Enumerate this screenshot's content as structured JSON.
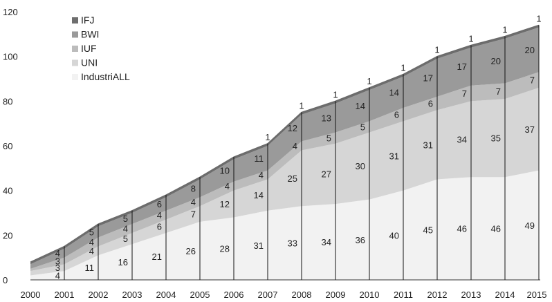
{
  "chart_data": {
    "type": "area",
    "stacked": true,
    "x": [
      "2000",
      "2001",
      "2002",
      "2003",
      "2004",
      "2005",
      "2006",
      "2007",
      "2008",
      "2009",
      "2010",
      "2011",
      "2012",
      "2013",
      "2014",
      "2015"
    ],
    "ylim": [
      0,
      120
    ],
    "yticks": [
      0,
      20,
      40,
      60,
      80,
      100,
      120
    ],
    "grid": false,
    "legend_position": "top-left",
    "series": [
      {
        "name": "IndustriALL",
        "color": "#f2f2f2",
        "values": [
          2,
          4,
          11,
          16,
          21,
          26,
          28,
          31,
          33,
          34,
          36,
          40,
          45,
          46,
          46,
          49
        ]
      },
      {
        "name": "UNI",
        "color": "#d6d6d6",
        "values": [
          2,
          3,
          4,
          5,
          6,
          7,
          12,
          14,
          25,
          27,
          30,
          31,
          31,
          34,
          35,
          37
        ]
      },
      {
        "name": "IUF",
        "color": "#bcbcbc",
        "values": [
          1,
          3,
          4,
          4,
          4,
          4,
          4,
          4,
          4,
          5,
          5,
          6,
          6,
          7,
          7,
          7
        ]
      },
      {
        "name": "BWI",
        "color": "#9a9a9a",
        "values": [
          2,
          4,
          5,
          5,
          6,
          8,
          10,
          11,
          12,
          13,
          14,
          14,
          17,
          17,
          20,
          20
        ]
      },
      {
        "name": "IFJ",
        "color": "#6e6e6e",
        "values": [
          1,
          1,
          1,
          1,
          1,
          1,
          1,
          1,
          1,
          1,
          1,
          1,
          1,
          1,
          1,
          1
        ]
      }
    ],
    "labels": {
      "IndustriALL": [
        null,
        "4",
        "11",
        "16",
        "21",
        "26",
        "28",
        "31",
        "33",
        "34",
        "36",
        "40",
        "45",
        "46",
        "46",
        "49"
      ],
      "UNI": [
        null,
        "3",
        "4",
        "5",
        "6",
        "7",
        "12",
        "14",
        "25",
        "27",
        "30",
        "31",
        "31",
        "34",
        "35",
        "37"
      ],
      "IUF": [
        null,
        "3",
        "4",
        "4",
        "4",
        "4",
        "4",
        "4",
        "4",
        "5",
        "5",
        "6",
        "6",
        "7",
        "7",
        "7"
      ],
      "BWI": [
        null,
        "4",
        "5",
        "5",
        "6",
        "8",
        "10",
        "11",
        "12",
        "13",
        "14",
        "14",
        "17",
        "17",
        "20",
        "20"
      ],
      "IFJ": [
        null,
        null,
        null,
        null,
        null,
        null,
        null,
        "1",
        "1",
        "1",
        "1",
        "1",
        "1",
        "1",
        "1",
        "1"
      ]
    }
  }
}
